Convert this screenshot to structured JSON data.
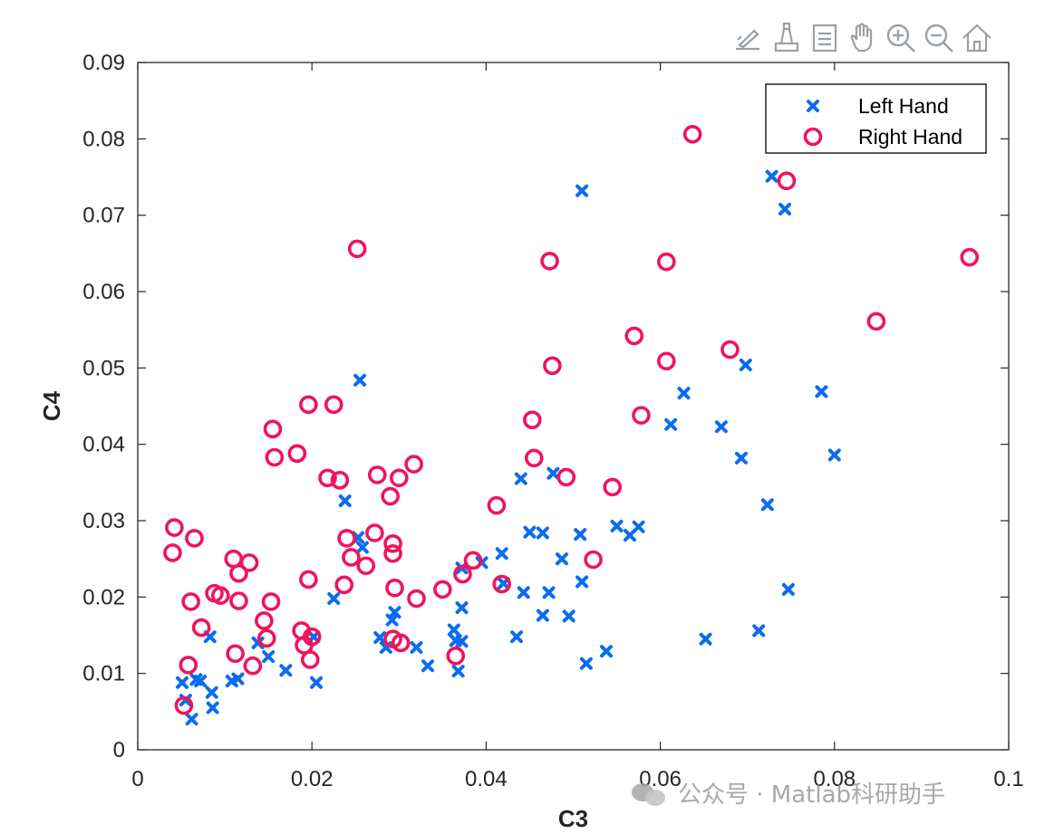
{
  "toolbar": {
    "icons": [
      "brush-edit-icon",
      "data-cursor-icon",
      "legend-toggle-icon",
      "pan-hand-icon",
      "zoom-in-icon",
      "zoom-out-icon",
      "home-icon"
    ]
  },
  "watermark": {
    "text": "公众号 · Matlab科研助手"
  },
  "chart_data": {
    "type": "scatter",
    "xlabel": "C3",
    "ylabel": "C4",
    "xlim": [
      0,
      0.1
    ],
    "ylim": [
      0,
      0.09
    ],
    "xticks": [
      "0",
      "0.02",
      "0.04",
      "0.06",
      "0.08",
      "0.1"
    ],
    "yticks": [
      "0",
      "0.01",
      "0.02",
      "0.03",
      "0.04",
      "0.05",
      "0.06",
      "0.07",
      "0.08",
      "0.09"
    ],
    "grid": false,
    "legend_position": "top-right",
    "series": [
      {
        "name": "Left Hand",
        "marker": "x",
        "color": "#0a6cf0",
        "points": [
          [
            0.0051,
            0.0088
          ],
          [
            0.0055,
            0.0065
          ],
          [
            0.0062,
            0.004
          ],
          [
            0.0067,
            0.0092
          ],
          [
            0.0072,
            0.009
          ],
          [
            0.0085,
            0.0075
          ],
          [
            0.0086,
            0.0055
          ],
          [
            0.0083,
            0.0148
          ],
          [
            0.0108,
            0.009
          ],
          [
            0.0115,
            0.0093
          ],
          [
            0.0138,
            0.014
          ],
          [
            0.015,
            0.0122
          ],
          [
            0.017,
            0.0104
          ],
          [
            0.0205,
            0.0088
          ],
          [
            0.0202,
            0.0148
          ],
          [
            0.0225,
            0.0198
          ],
          [
            0.0238,
            0.0326
          ],
          [
            0.0253,
            0.0278
          ],
          [
            0.0258,
            0.0265
          ],
          [
            0.0255,
            0.0484
          ],
          [
            0.0278,
            0.0147
          ],
          [
            0.0285,
            0.0134
          ],
          [
            0.0292,
            0.017
          ],
          [
            0.0295,
            0.018
          ],
          [
            0.032,
            0.0134
          ],
          [
            0.0333,
            0.011
          ],
          [
            0.0363,
            0.0157
          ],
          [
            0.0365,
            0.0143
          ],
          [
            0.0372,
            0.0142
          ],
          [
            0.0368,
            0.0103
          ],
          [
            0.0372,
            0.0186
          ],
          [
            0.0372,
            0.0238
          ],
          [
            0.0395,
            0.0245
          ],
          [
            0.0418,
            0.0257
          ],
          [
            0.042,
            0.0218
          ],
          [
            0.0435,
            0.0148
          ],
          [
            0.0443,
            0.0206
          ],
          [
            0.044,
            0.0355
          ],
          [
            0.045,
            0.0285
          ],
          [
            0.0465,
            0.0284
          ],
          [
            0.0465,
            0.0176
          ],
          [
            0.0472,
            0.0206
          ],
          [
            0.0477,
            0.0362
          ],
          [
            0.0487,
            0.025
          ],
          [
            0.0495,
            0.0175
          ],
          [
            0.0508,
            0.0282
          ],
          [
            0.051,
            0.022
          ],
          [
            0.0515,
            0.0113
          ],
          [
            0.051,
            0.0732
          ],
          [
            0.0538,
            0.0129
          ],
          [
            0.055,
            0.0293
          ],
          [
            0.0565,
            0.0281
          ],
          [
            0.0575,
            0.0292
          ],
          [
            0.0627,
            0.0467
          ],
          [
            0.0612,
            0.0426
          ],
          [
            0.0652,
            0.0145
          ],
          [
            0.067,
            0.0423
          ],
          [
            0.0693,
            0.0382
          ],
          [
            0.0698,
            0.0504
          ],
          [
            0.0713,
            0.0156
          ],
          [
            0.0723,
            0.0321
          ],
          [
            0.0728,
            0.0751
          ],
          [
            0.0743,
            0.0708
          ],
          [
            0.0747,
            0.021
          ],
          [
            0.0785,
            0.0469
          ],
          [
            0.08,
            0.0386
          ]
        ]
      },
      {
        "name": "Right Hand",
        "marker": "o",
        "color": "#f0145a",
        "points": [
          [
            0.004,
            0.0258
          ],
          [
            0.0042,
            0.0291
          ],
          [
            0.0053,
            0.0058
          ],
          [
            0.0058,
            0.0111
          ],
          [
            0.0061,
            0.0194
          ],
          [
            0.0065,
            0.0277
          ],
          [
            0.0073,
            0.016
          ],
          [
            0.0088,
            0.0205
          ],
          [
            0.0095,
            0.0202
          ],
          [
            0.0112,
            0.0126
          ],
          [
            0.011,
            0.025
          ],
          [
            0.0116,
            0.0231
          ],
          [
            0.0116,
            0.0195
          ],
          [
            0.0128,
            0.0245
          ],
          [
            0.0132,
            0.011
          ],
          [
            0.0145,
            0.0169
          ],
          [
            0.0148,
            0.0146
          ],
          [
            0.0153,
            0.0194
          ],
          [
            0.0155,
            0.042
          ],
          [
            0.0157,
            0.0383
          ],
          [
            0.0183,
            0.0388
          ],
          [
            0.0188,
            0.0156
          ],
          [
            0.0191,
            0.0137
          ],
          [
            0.0196,
            0.0452
          ],
          [
            0.0196,
            0.0223
          ],
          [
            0.0198,
            0.0118
          ],
          [
            0.02,
            0.0148
          ],
          [
            0.0218,
            0.0356
          ],
          [
            0.0225,
            0.0452
          ],
          [
            0.0232,
            0.0353
          ],
          [
            0.0237,
            0.0216
          ],
          [
            0.024,
            0.0277
          ],
          [
            0.0245,
            0.0252
          ],
          [
            0.0252,
            0.0656
          ],
          [
            0.0262,
            0.0241
          ],
          [
            0.0272,
            0.0284
          ],
          [
            0.0275,
            0.036
          ],
          [
            0.029,
            0.0332
          ],
          [
            0.0293,
            0.027
          ],
          [
            0.0293,
            0.0257
          ],
          [
            0.0295,
            0.0212
          ],
          [
            0.0293,
            0.0145
          ],
          [
            0.03,
            0.0356
          ],
          [
            0.0302,
            0.014
          ],
          [
            0.0317,
            0.0374
          ],
          [
            0.032,
            0.0198
          ],
          [
            0.035,
            0.021
          ],
          [
            0.0365,
            0.0123
          ],
          [
            0.0373,
            0.023
          ],
          [
            0.0385,
            0.0248
          ],
          [
            0.0412,
            0.032
          ],
          [
            0.0418,
            0.0217
          ],
          [
            0.0453,
            0.0432
          ],
          [
            0.0455,
            0.0382
          ],
          [
            0.0473,
            0.064
          ],
          [
            0.0476,
            0.0503
          ],
          [
            0.0492,
            0.0357
          ],
          [
            0.0523,
            0.0249
          ],
          [
            0.0545,
            0.0344
          ],
          [
            0.057,
            0.0542
          ],
          [
            0.0578,
            0.0438
          ],
          [
            0.0607,
            0.0509
          ],
          [
            0.0607,
            0.0639
          ],
          [
            0.0637,
            0.0806
          ],
          [
            0.068,
            0.0524
          ],
          [
            0.0745,
            0.0745
          ],
          [
            0.0848,
            0.0561
          ],
          [
            0.0955,
            0.0645
          ]
        ]
      }
    ]
  }
}
